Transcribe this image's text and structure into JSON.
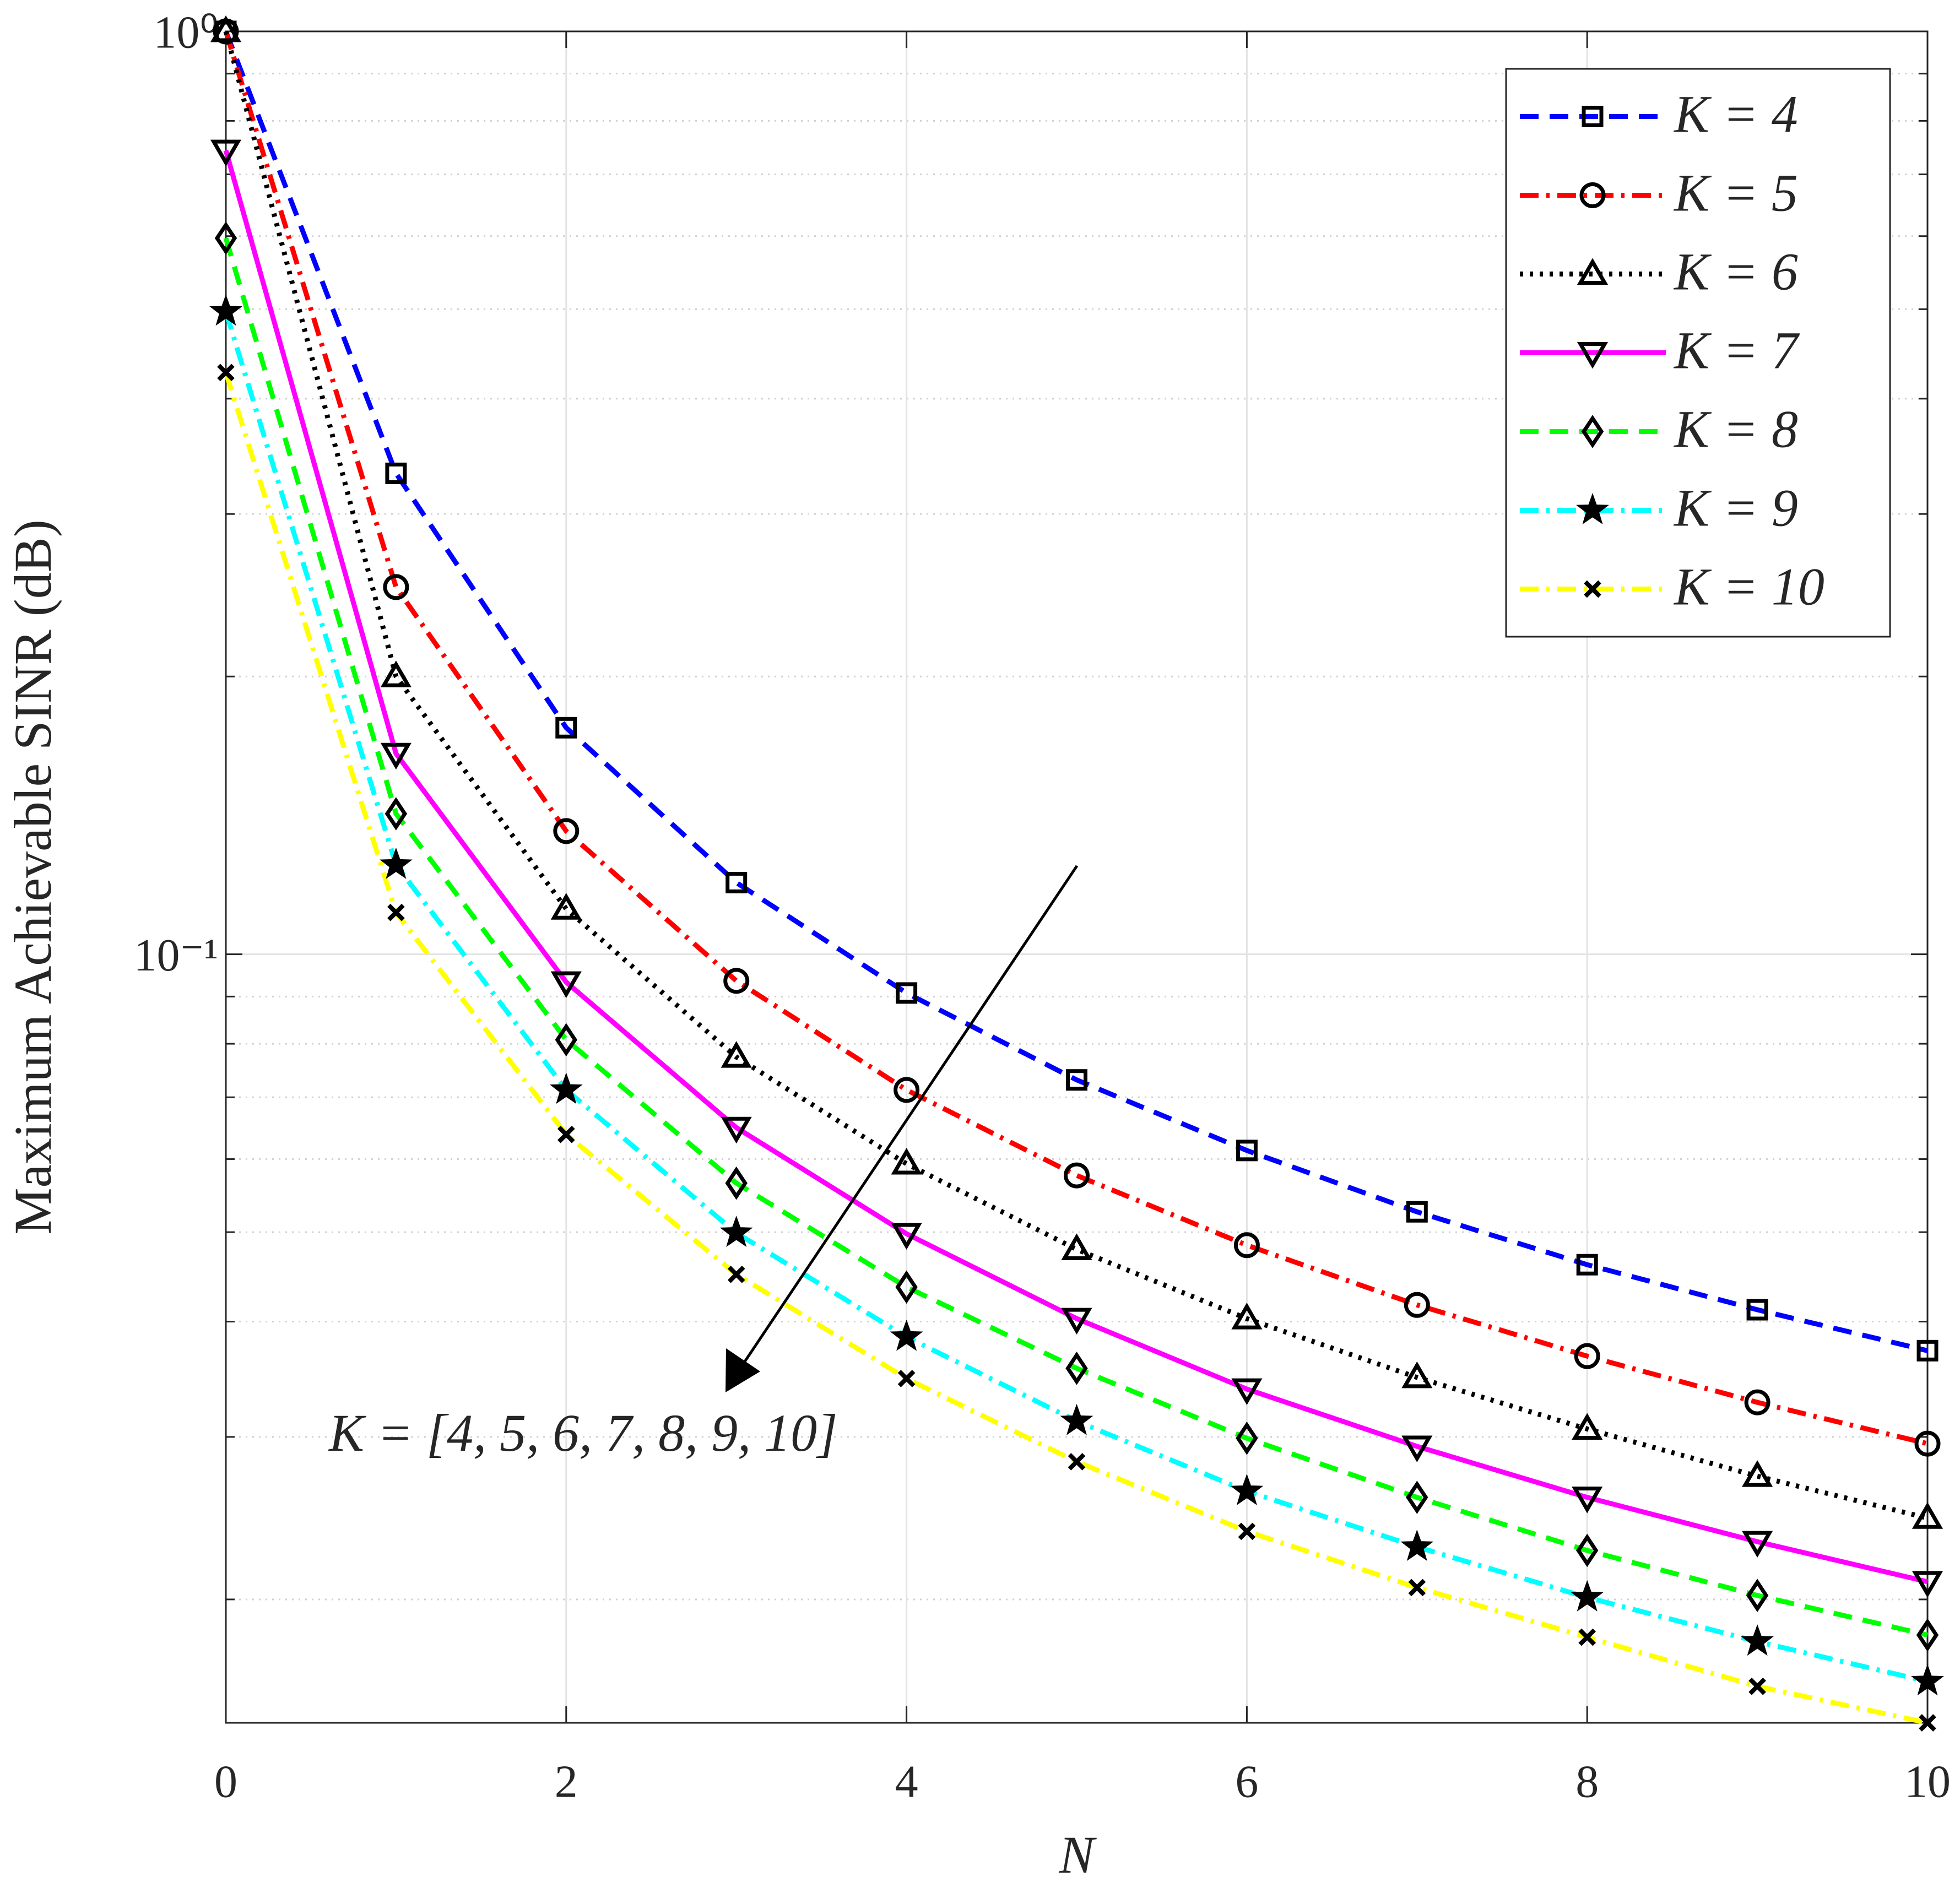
{
  "chart_data": {
    "type": "line",
    "xlabel": "N",
    "ylabel": "Maximum Achievable SINR (dB)",
    "annotation": "K = [4, 5, 6, 7, 8, 9, 10]",
    "x": [
      0,
      1,
      2,
      3,
      4,
      5,
      6,
      7,
      8,
      9,
      10
    ],
    "xlim": [
      0,
      10
    ],
    "xticks": [
      0,
      2,
      4,
      6,
      8,
      10
    ],
    "ylim": [
      0.0147,
      1
    ],
    "log_y": true,
    "yticks": [
      {
        "value": 0.1,
        "label": "10⁻¹"
      },
      {
        "value": 1,
        "label": "10⁰"
      }
    ],
    "yminor": [
      0.02,
      0.03,
      0.04,
      0.05,
      0.06,
      0.07,
      0.08,
      0.09,
      0.2,
      0.3,
      0.4,
      0.5,
      0.6,
      0.7,
      0.8,
      0.9
    ],
    "grid": true,
    "legend": "northeast",
    "series": [
      {
        "name": "K = 4",
        "color": "#0000ff",
        "linestyle": "dashed",
        "marker": "square",
        "values": [
          1.0,
          0.332,
          0.176,
          0.1196,
          0.0908,
          0.0731,
          0.0613,
          0.0526,
          0.0461,
          0.0412,
          0.0372
        ]
      },
      {
        "name": "K = 5",
        "color": "#ff0000",
        "linestyle": "dashdot",
        "marker": "circle",
        "values": [
          1.0,
          0.25,
          0.136,
          0.0936,
          0.0713,
          0.0576,
          0.0484,
          0.0417,
          0.0367,
          0.0327,
          0.0295
        ]
      },
      {
        "name": "K = 6",
        "color": "#000000",
        "linestyle": "dotted",
        "marker": "triangle-up",
        "values": [
          1.0,
          0.2,
          0.112,
          0.0774,
          0.0593,
          0.0479,
          0.0403,
          0.0348,
          0.0306,
          0.0272,
          0.0245
        ]
      },
      {
        "name": "K = 7",
        "color": "#ff00ff",
        "linestyle": "solid",
        "marker": "triangle-down",
        "values": [
          0.743,
          0.165,
          0.0933,
          0.0649,
          0.0498,
          0.0403,
          0.0338,
          0.0293,
          0.0258,
          0.0231,
          0.0209
        ]
      },
      {
        "name": "K = 8",
        "color": "#00ff00",
        "linestyle": "dashed",
        "marker": "diamond",
        "values": [
          0.597,
          0.142,
          0.0808,
          0.0565,
          0.0436,
          0.0356,
          0.0299,
          0.0258,
          0.0226,
          0.0202,
          0.0183
        ]
      },
      {
        "name": "K = 9",
        "color": "#00ffff",
        "linestyle": "dashdot",
        "marker": "star",
        "values": [
          0.497,
          0.125,
          0.0713,
          0.0499,
          0.0385,
          0.0312,
          0.0262,
          0.0228,
          0.0201,
          0.018,
          0.0163
        ]
      },
      {
        "name": "K = 10",
        "color": "#ffff00",
        "linestyle": "dashdot",
        "marker": "x",
        "values": [
          0.427,
          0.111,
          0.0638,
          0.045,
          0.0347,
          0.0282,
          0.0237,
          0.0206,
          0.0182,
          0.0161,
          0.0147
        ]
      }
    ]
  }
}
